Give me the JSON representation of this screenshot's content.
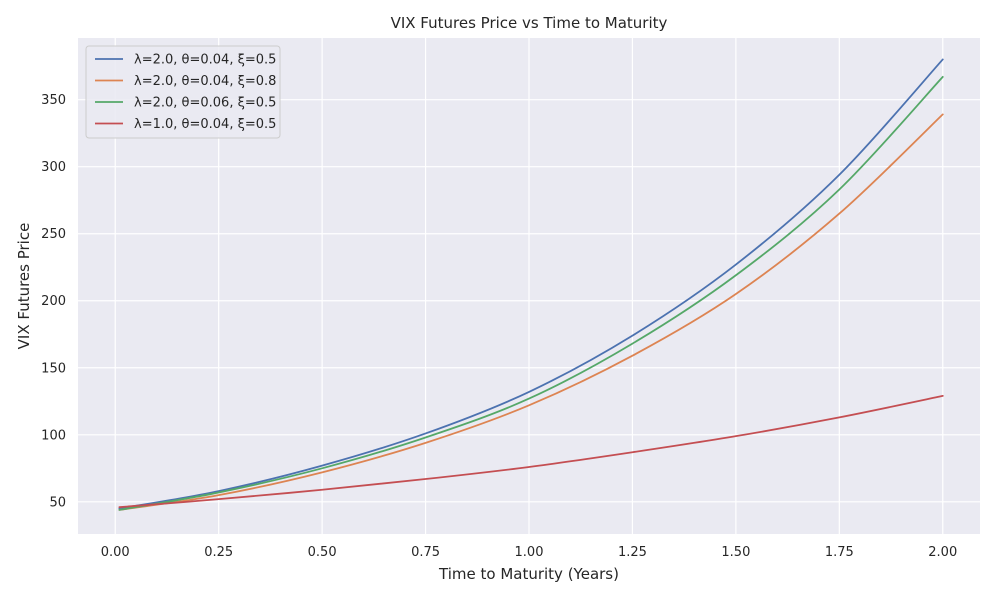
{
  "chart_data": {
    "type": "line",
    "title": "VIX Futures Price vs Time to Maturity",
    "xlabel": "Time to Maturity (Years)",
    "ylabel": "VIX Futures Price",
    "xlim": [
      -0.09,
      2.09
    ],
    "ylim": [
      26,
      396
    ],
    "xticks": [
      0.0,
      0.25,
      0.5,
      0.75,
      1.0,
      1.25,
      1.5,
      1.75,
      2.0
    ],
    "xtick_labels": [
      "0.00",
      "0.25",
      "0.50",
      "0.75",
      "1.00",
      "1.25",
      "1.50",
      "1.75",
      "2.00"
    ],
    "yticks": [
      50,
      100,
      150,
      200,
      250,
      300,
      350
    ],
    "ytick_labels": [
      "50",
      "100",
      "150",
      "200",
      "250",
      "300",
      "350"
    ],
    "grid": true,
    "legend_position": "top-left",
    "x": [
      0.01,
      0.25,
      0.5,
      0.75,
      1.0,
      1.25,
      1.5,
      1.75,
      2.0
    ],
    "series": [
      {
        "name": "λ=2.0, θ=0.04, ξ=0.5",
        "color": "#4c72b0",
        "values": [
          45,
          58,
          77,
          101,
          132,
          174,
          227,
          294,
          380
        ]
      },
      {
        "name": "λ=2.0, θ=0.04, ξ=0.8",
        "color": "#dd8452",
        "values": [
          44,
          55,
          72,
          94,
          122,
          159,
          205,
          265,
          339
        ]
      },
      {
        "name": "λ=2.0, θ=0.06, ξ=0.5",
        "color": "#55a868",
        "values": [
          44,
          57,
          75,
          98,
          127,
          168,
          219,
          283,
          367
        ]
      },
      {
        "name": "λ=1.0, θ=0.04, ξ=0.5",
        "color": "#c44e52",
        "values": [
          46,
          52,
          59,
          67,
          76,
          87,
          99,
          113,
          129
        ]
      }
    ]
  }
}
